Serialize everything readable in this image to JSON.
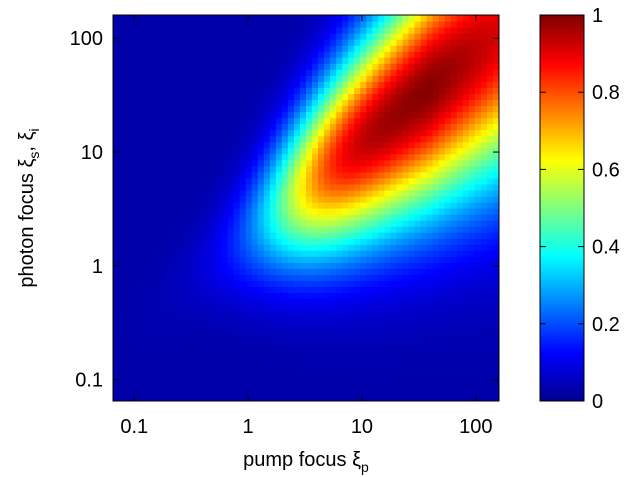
{
  "chart_data": {
    "type": "heatmap",
    "xlabel": {
      "main": "pump focus ξ",
      "sub": "p"
    },
    "ylabel": {
      "main": "photon focus ξ",
      "sub1": "s",
      "sep": ", ξ",
      "sub2": "i"
    },
    "x_scale": "log",
    "y_scale": "log",
    "xlim": [
      0.065,
      160
    ],
    "ylim": [
      0.065,
      160
    ],
    "x_ticks": [
      {
        "value": 0.1,
        "label": "0.1"
      },
      {
        "value": 1,
        "label": "1"
      },
      {
        "value": 10,
        "label": "10"
      },
      {
        "value": 100,
        "label": "100"
      }
    ],
    "y_ticks": [
      {
        "value": 0.1,
        "label": "0.1"
      },
      {
        "value": 1,
        "label": "1"
      },
      {
        "value": 10,
        "label": "10"
      },
      {
        "value": 100,
        "label": "100"
      }
    ],
    "colormap": "jet",
    "colorbar": {
      "range": [
        0,
        1
      ],
      "ticks": [
        {
          "value": 0,
          "label": "0"
        },
        {
          "value": 0.2,
          "label": "0.2"
        },
        {
          "value": 0.4,
          "label": "0.4"
        },
        {
          "value": 0.6,
          "label": "0.6"
        },
        {
          "value": 0.8,
          "label": "0.8"
        },
        {
          "value": 1,
          "label": "1"
        }
      ]
    },
    "ridge": {
      "description_values": "peak of function near xi_p ~ 20-100, xi_s ~ 10-50; ridge along xi_s ≈ xi_p^0.7 scaled",
      "peak_value": 1
    }
  }
}
